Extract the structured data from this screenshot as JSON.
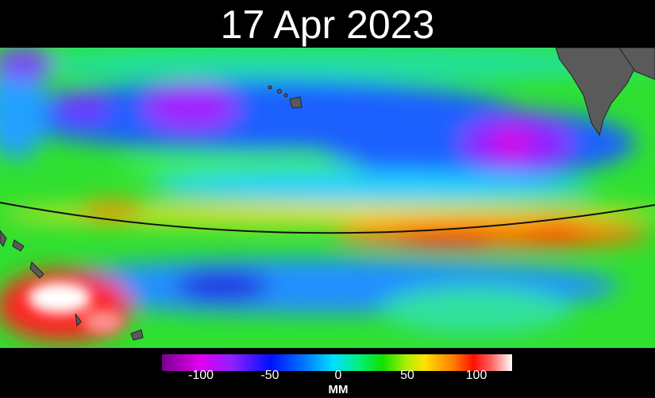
{
  "title": "17 Apr 2023",
  "colorbar": {
    "ticks": [
      "-100",
      "-50",
      "0",
      "50",
      "100"
    ],
    "unit": "MM",
    "range": [
      -130,
      126
    ]
  },
  "colors": {
    "land": "#555555",
    "background": "#000000",
    "zero": "#20e020"
  }
}
